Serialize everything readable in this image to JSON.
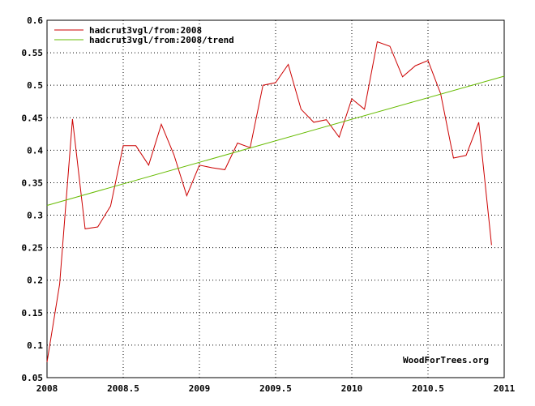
{
  "chart_data": {
    "type": "line",
    "x_ticks": [
      "2008",
      "2008.5",
      "2009",
      "2009.5",
      "2010",
      "2010.5",
      "2011"
    ],
    "y_ticks": [
      "0.05",
      "0.1",
      "0.15",
      "0.2",
      "0.25",
      "0.3",
      "0.35",
      "0.4",
      "0.45",
      "0.5",
      "0.55",
      "0.6"
    ],
    "xlim": [
      2008,
      2011
    ],
    "ylim": [
      0.05,
      0.6
    ],
    "grid": true,
    "legend_position": "top-left",
    "credit": "WoodForTrees.org",
    "series": [
      {
        "name": "hadcrut3vgl/from:2008",
        "color": "#cc0000",
        "points": [
          [
            2008.0,
            0.074
          ],
          [
            2008.083,
            0.194
          ],
          [
            2008.167,
            0.448
          ],
          [
            2008.25,
            0.279
          ],
          [
            2008.333,
            0.282
          ],
          [
            2008.417,
            0.314
          ],
          [
            2008.5,
            0.407
          ],
          [
            2008.583,
            0.407
          ],
          [
            2008.667,
            0.377
          ],
          [
            2008.75,
            0.44
          ],
          [
            2008.833,
            0.393
          ],
          [
            2008.917,
            0.33
          ],
          [
            2009.0,
            0.377
          ],
          [
            2009.083,
            0.373
          ],
          [
            2009.167,
            0.37
          ],
          [
            2009.25,
            0.411
          ],
          [
            2009.333,
            0.404
          ],
          [
            2009.417,
            0.5
          ],
          [
            2009.5,
            0.504
          ],
          [
            2009.583,
            0.532
          ],
          [
            2009.667,
            0.463
          ],
          [
            2009.75,
            0.443
          ],
          [
            2009.833,
            0.447
          ],
          [
            2009.917,
            0.42
          ],
          [
            2010.0,
            0.479
          ],
          [
            2010.083,
            0.463
          ],
          [
            2010.167,
            0.567
          ],
          [
            2010.25,
            0.56
          ],
          [
            2010.333,
            0.513
          ],
          [
            2010.417,
            0.53
          ],
          [
            2010.5,
            0.538
          ],
          [
            2010.583,
            0.487
          ],
          [
            2010.667,
            0.388
          ],
          [
            2010.75,
            0.392
          ],
          [
            2010.833,
            0.443
          ],
          [
            2010.917,
            0.254
          ]
        ]
      },
      {
        "name": "hadcrut3vgl/from:2008/trend",
        "color": "#66bb00",
        "points": [
          [
            2008.0,
            0.315
          ],
          [
            2011.0,
            0.514
          ]
        ]
      }
    ]
  }
}
